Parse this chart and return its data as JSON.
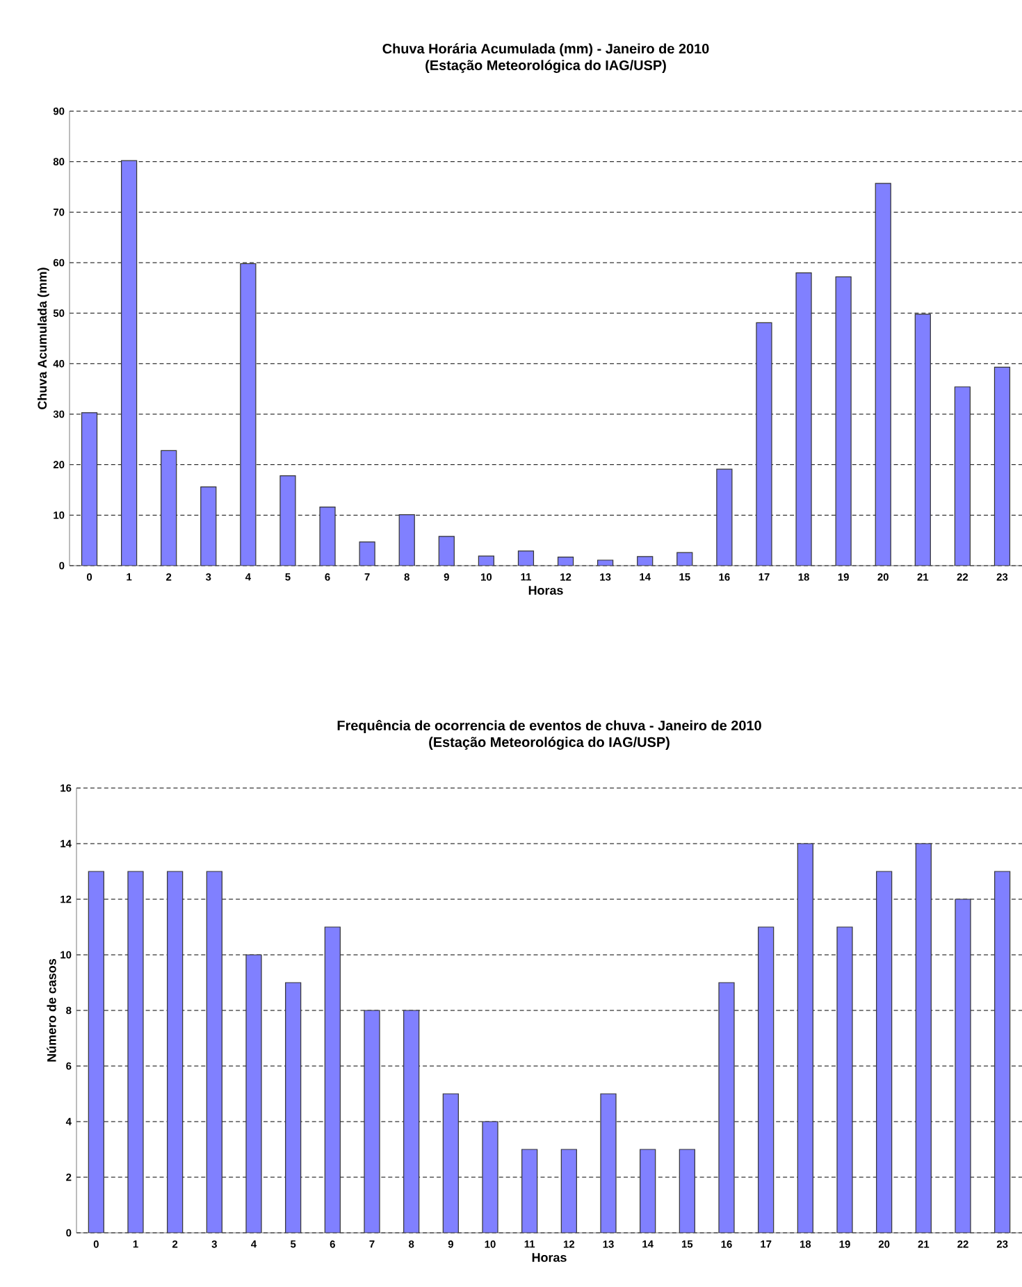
{
  "chart_data": [
    {
      "type": "bar",
      "title": "Chuva Horária Acumulada (mm) - Janeiro de 2010",
      "subtitle": "(Estação Meteorológica do IAG/USP)",
      "xlabel": "Horas",
      "ylabel": "Chuva Acumulada (mm)",
      "categories": [
        "0",
        "1",
        "2",
        "3",
        "4",
        "5",
        "6",
        "7",
        "8",
        "9",
        "10",
        "11",
        "12",
        "13",
        "14",
        "15",
        "16",
        "17",
        "18",
        "19",
        "20",
        "21",
        "22",
        "23"
      ],
      "values": [
        30.3,
        80.2,
        22.8,
        15.6,
        59.8,
        17.8,
        11.6,
        4.7,
        10.1,
        5.8,
        1.9,
        2.9,
        1.7,
        1.1,
        1.8,
        2.6,
        19.1,
        48.1,
        58.0,
        57.2,
        75.7,
        49.8,
        35.4,
        39.3
      ],
      "color": "#8080ff",
      "ylim": [
        0,
        90
      ],
      "yticks": [
        0,
        10,
        20,
        30,
        40,
        50,
        60,
        70,
        80,
        90
      ],
      "grid": "y"
    },
    {
      "type": "bar",
      "title": "Frequência de ocorrencia de eventos de chuva - Janeiro de 2010",
      "subtitle": "(Estação Meteorológica do IAG/USP)",
      "xlabel": "Horas",
      "ylabel": "Número de casos",
      "categories": [
        "0",
        "1",
        "2",
        "3",
        "4",
        "5",
        "6",
        "7",
        "8",
        "9",
        "10",
        "11",
        "12",
        "13",
        "14",
        "15",
        "16",
        "17",
        "18",
        "19",
        "20",
        "21",
        "22",
        "23"
      ],
      "values": [
        13,
        13,
        13,
        13,
        10,
        9,
        11,
        8,
        8,
        5,
        4,
        3,
        3,
        5,
        3,
        3,
        9,
        11,
        14,
        11,
        13,
        14,
        12,
        13
      ],
      "color": "#8080ff",
      "ylim": [
        0,
        16
      ],
      "yticks": [
        0,
        2,
        4,
        6,
        8,
        10,
        12,
        14,
        16
      ],
      "grid": "y"
    }
  ]
}
